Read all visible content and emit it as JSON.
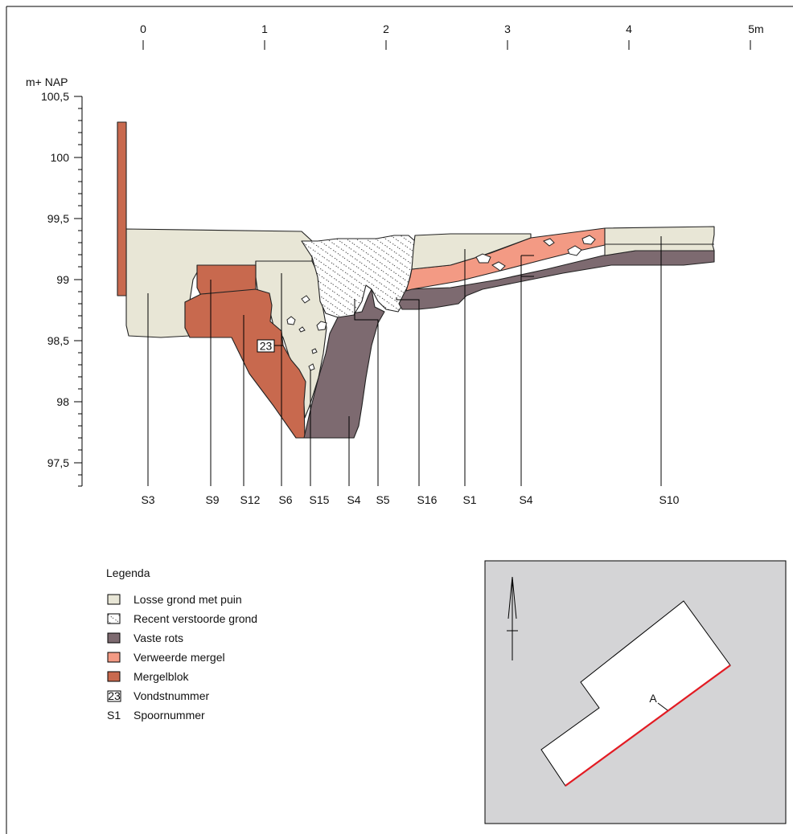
{
  "scale": {
    "x_ticks": [
      "0",
      "1",
      "2",
      "3",
      "4",
      "5m"
    ],
    "y_unit": "m+ NAP",
    "y_ticks": [
      "100,5",
      "100",
      "99,5",
      "99",
      "98,5",
      "98",
      "97,5"
    ]
  },
  "finds": [
    "23"
  ],
  "features": [
    "S3",
    "S9",
    "S12",
    "S6",
    "S15",
    "S4",
    "S5",
    "S16",
    "S1",
    "S4",
    "S10"
  ],
  "legend": {
    "title": "Legenda",
    "items": [
      {
        "label": "Losse grond met puin",
        "color": "#e8e6d6",
        "icon": "swatch-loose-soil"
      },
      {
        "label": "Recent verstoorde grond",
        "color": "#ffffff",
        "icon": "swatch-disturbed-soil"
      },
      {
        "label": "Vaste rots",
        "color": "#7d6a70",
        "icon": "swatch-bedrock"
      },
      {
        "label": "Verweerde mergel",
        "color": "#f39a84",
        "icon": "swatch-weathered-marl"
      },
      {
        "label": "Mergelblok",
        "color": "#c8694e",
        "icon": "swatch-marl-block"
      },
      {
        "label": "Vondstnummer",
        "code": "23",
        "icon": "find-number-box"
      },
      {
        "label": "Spoornummer",
        "code": "S1",
        "icon": "feature-number"
      }
    ]
  },
  "inset": {
    "label": "A",
    "section_color": "#e31b23",
    "background": "#d4d4d6"
  }
}
